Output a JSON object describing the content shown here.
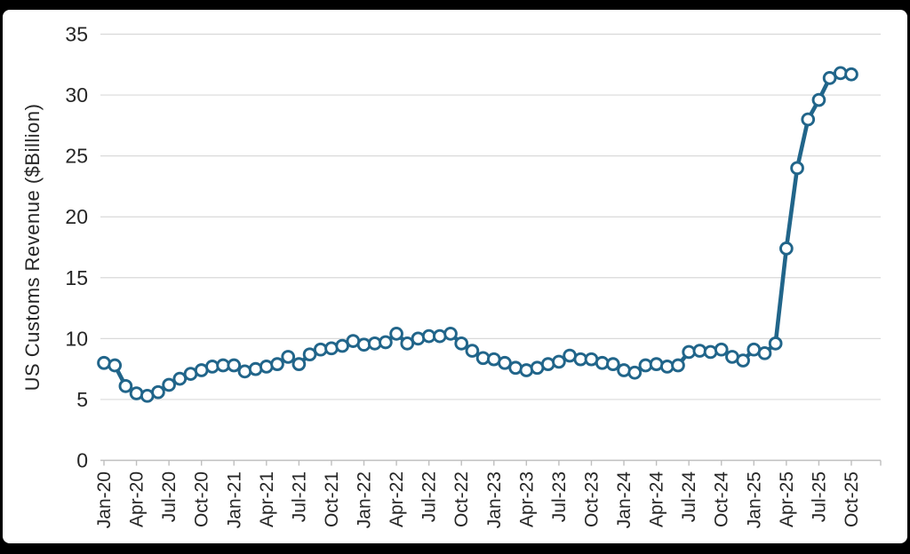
{
  "frame": {
    "background_color": "#000000",
    "panel_color": "#ffffff"
  },
  "chart_data": {
    "type": "line",
    "title": "",
    "xlabel": "",
    "ylabel": "US Customs Revenue ($Billion)",
    "x": [
      "Jan-20",
      "Feb-20",
      "Mar-20",
      "Apr-20",
      "May-20",
      "Jun-20",
      "Jul-20",
      "Aug-20",
      "Sep-20",
      "Oct-20",
      "Nov-20",
      "Dec-20",
      "Jan-21",
      "Feb-21",
      "Mar-21",
      "Apr-21",
      "May-21",
      "Jun-21",
      "Jul-21",
      "Aug-21",
      "Sep-21",
      "Oct-21",
      "Nov-21",
      "Dec-21",
      "Jan-22",
      "Feb-22",
      "Mar-22",
      "Apr-22",
      "May-22",
      "Jun-22",
      "Jul-22",
      "Aug-22",
      "Sep-22",
      "Oct-22",
      "Nov-22",
      "Dec-22",
      "Jan-23",
      "Feb-23",
      "Mar-23",
      "Apr-23",
      "May-23",
      "Jun-23",
      "Jul-23",
      "Aug-23",
      "Sep-23",
      "Oct-23",
      "Nov-23",
      "Dec-23",
      "Jan-24",
      "Feb-24",
      "Mar-24",
      "Apr-24",
      "May-24",
      "Jun-24",
      "Jul-24",
      "Aug-24",
      "Sep-24",
      "Oct-24",
      "Nov-24",
      "Dec-24",
      "Jan-25",
      "Feb-25",
      "Mar-25",
      "Apr-25",
      "May-25",
      "Jun-25",
      "Jul-25",
      "Aug-25",
      "Sep-25",
      "Oct-25"
    ],
    "values": [
      8.0,
      7.8,
      6.1,
      5.5,
      5.3,
      5.6,
      6.2,
      6.7,
      7.1,
      7.4,
      7.7,
      7.8,
      7.8,
      7.3,
      7.5,
      7.7,
      7.9,
      8.5,
      7.9,
      8.7,
      9.1,
      9.2,
      9.4,
      9.8,
      9.5,
      9.6,
      9.7,
      10.4,
      9.6,
      10.0,
      10.2,
      10.2,
      10.4,
      9.6,
      9.0,
      8.4,
      8.3,
      8.0,
      7.6,
      7.4,
      7.6,
      7.9,
      8.1,
      8.6,
      8.3,
      8.3,
      8.0,
      7.9,
      7.4,
      7.2,
      7.8,
      7.9,
      7.7,
      7.8,
      8.9,
      9.0,
      8.9,
      9.1,
      8.5,
      8.2,
      9.1,
      8.8,
      9.6,
      17.4,
      24.0,
      28.0,
      29.6,
      31.4,
      31.8,
      31.7
    ],
    "x_tick_every_n_months": 3,
    "x_tick_labels_shown": [
      "Jan-20",
      "Apr-20",
      "Jul-20",
      "Oct-20",
      "Jan-21",
      "Apr-21",
      "Jul-21",
      "Oct-21",
      "Jan-22",
      "Apr-22",
      "Jul-22",
      "Oct-22",
      "Jan-23",
      "Apr-23",
      "Jul-23",
      "Oct-23",
      "Jan-24",
      "Apr-24",
      "Jul-24",
      "Oct-24",
      "Jan-25",
      "Apr-25",
      "Jul-25",
      "Oct-25"
    ],
    "y_ticks": [
      0,
      5,
      10,
      15,
      20,
      25,
      30,
      35
    ],
    "ylim": [
      0,
      35
    ],
    "grid": "horizontal",
    "legend": "none",
    "marker": "open-circle",
    "line_color": "#21658a",
    "marker_fill": "#ffffff",
    "gridline_color": "#d9d9d9",
    "axis_color": "#bfbfbf",
    "text_color": "#262626"
  }
}
